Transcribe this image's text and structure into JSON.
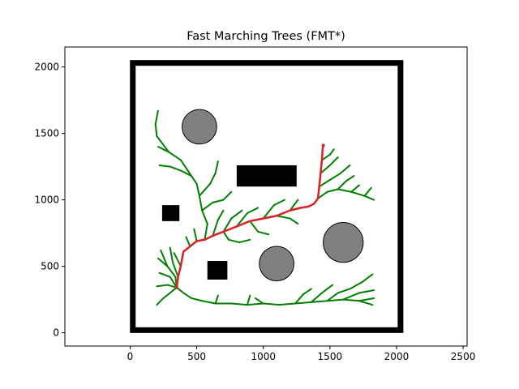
{
  "chart_data": {
    "type": "scatter",
    "title": "Fast Marching Trees (FMT*)",
    "xlabel": "",
    "ylabel": "",
    "xlim": [
      -490,
      2530
    ],
    "ylim": [
      -100,
      2150
    ],
    "x_ticks": [
      0,
      500,
      1000,
      1500,
      2000,
      2500
    ],
    "y_ticks": [
      0,
      500,
      1000,
      1500,
      2000
    ],
    "grid": false,
    "legend": "none",
    "colors": {
      "tree": "#008000",
      "path": "#d62728",
      "wall": "#000000",
      "circle_obstacle": "#808080",
      "rect_obstacle": "#000000"
    },
    "boundary": {
      "x0": 20,
      "y0": 20,
      "x1": 2030,
      "y1": 2030
    },
    "rect_obstacles": [
      {
        "x": 800,
        "y": 1100,
        "w": 450,
        "h": 160
      },
      {
        "x": 240,
        "y": 840,
        "w": 130,
        "h": 120
      },
      {
        "x": 580,
        "y": 400,
        "w": 150,
        "h": 140
      }
    ],
    "circle_obstacles": [
      {
        "cx": 520,
        "cy": 1550,
        "r": 130
      },
      {
        "cx": 1100,
        "cy": 520,
        "r": 130
      },
      {
        "cx": 1600,
        "cy": 680,
        "r": 150
      }
    ],
    "start": {
      "x": 350,
      "y": 340
    },
    "goal": {
      "x": 1450,
      "y": 1410
    },
    "path": [
      [
        350,
        340
      ],
      [
        360,
        420
      ],
      [
        380,
        500
      ],
      [
        400,
        610
      ],
      [
        450,
        650
      ],
      [
        500,
        690
      ],
      [
        560,
        700
      ],
      [
        620,
        730
      ],
      [
        700,
        760
      ],
      [
        800,
        800
      ],
      [
        900,
        840
      ],
      [
        1000,
        860
      ],
      [
        1100,
        880
      ],
      [
        1200,
        920
      ],
      [
        1280,
        940
      ],
      [
        1340,
        950
      ],
      [
        1380,
        970
      ],
      [
        1410,
        1010
      ],
      [
        1420,
        1100
      ],
      [
        1430,
        1200
      ],
      [
        1440,
        1300
      ],
      [
        1445,
        1380
      ],
      [
        1450,
        1410
      ]
    ],
    "tree_edges": [
      [
        [
          350,
          340
        ],
        [
          300,
          300
        ]
      ],
      [
        [
          300,
          300
        ],
        [
          250,
          260
        ]
      ],
      [
        [
          250,
          260
        ],
        [
          200,
          210
        ]
      ],
      [
        [
          350,
          340
        ],
        [
          280,
          360
        ]
      ],
      [
        [
          280,
          360
        ],
        [
          200,
          350
        ]
      ],
      [
        [
          350,
          340
        ],
        [
          300,
          420
        ]
      ],
      [
        [
          300,
          420
        ],
        [
          220,
          450
        ]
      ],
      [
        [
          350,
          340
        ],
        [
          340,
          420
        ]
      ],
      [
        [
          340,
          420
        ],
        [
          280,
          500
        ]
      ],
      [
        [
          280,
          500
        ],
        [
          210,
          560
        ]
      ],
      [
        [
          280,
          500
        ],
        [
          230,
          620
        ]
      ],
      [
        [
          360,
          420
        ],
        [
          320,
          530
        ]
      ],
      [
        [
          320,
          530
        ],
        [
          300,
          640
        ]
      ],
      [
        [
          380,
          500
        ],
        [
          330,
          600
        ]
      ],
      [
        [
          350,
          340
        ],
        [
          400,
          300
        ]
      ],
      [
        [
          400,
          300
        ],
        [
          460,
          260
        ]
      ],
      [
        [
          460,
          260
        ],
        [
          540,
          240
        ]
      ],
      [
        [
          540,
          240
        ],
        [
          640,
          220
        ]
      ],
      [
        [
          640,
          220
        ],
        [
          760,
          220
        ]
      ],
      [
        [
          760,
          220
        ],
        [
          880,
          210
        ]
      ],
      [
        [
          880,
          210
        ],
        [
          1000,
          220
        ]
      ],
      [
        [
          1000,
          220
        ],
        [
          1120,
          210
        ]
      ],
      [
        [
          1120,
          210
        ],
        [
          1240,
          220
        ]
      ],
      [
        [
          1240,
          220
        ],
        [
          1360,
          230
        ]
      ],
      [
        [
          1360,
          230
        ],
        [
          1480,
          240
        ]
      ],
      [
        [
          1480,
          240
        ],
        [
          1600,
          250
        ]
      ],
      [
        [
          1600,
          250
        ],
        [
          1720,
          240
        ]
      ],
      [
        [
          1720,
          240
        ],
        [
          1820,
          210
        ]
      ],
      [
        [
          1480,
          240
        ],
        [
          1560,
          300
        ]
      ],
      [
        [
          1560,
          300
        ],
        [
          1650,
          330
        ]
      ],
      [
        [
          1650,
          330
        ],
        [
          1740,
          380
        ]
      ],
      [
        [
          1740,
          380
        ],
        [
          1820,
          440
        ]
      ],
      [
        [
          1360,
          230
        ],
        [
          1440,
          300
        ]
      ],
      [
        [
          1440,
          300
        ],
        [
          1520,
          360
        ]
      ],
      [
        [
          1240,
          220
        ],
        [
          1300,
          290
        ]
      ],
      [
        [
          1300,
          290
        ],
        [
          1360,
          330
        ]
      ],
      [
        [
          1000,
          220
        ],
        [
          940,
          260
        ]
      ],
      [
        [
          880,
          210
        ],
        [
          900,
          280
        ]
      ],
      [
        [
          640,
          220
        ],
        [
          660,
          280
        ]
      ],
      [
        [
          1600,
          250
        ],
        [
          1720,
          300
        ]
      ],
      [
        [
          1720,
          300
        ],
        [
          1830,
          320
        ]
      ],
      [
        [
          1720,
          240
        ],
        [
          1830,
          260
        ]
      ],
      [
        [
          450,
          650
        ],
        [
          420,
          720
        ]
      ],
      [
        [
          500,
          690
        ],
        [
          480,
          780
        ]
      ],
      [
        [
          560,
          700
        ],
        [
          580,
          820
        ]
      ],
      [
        [
          580,
          820
        ],
        [
          540,
          920
        ]
      ],
      [
        [
          540,
          920
        ],
        [
          520,
          1030
        ]
      ],
      [
        [
          520,
          1030
        ],
        [
          500,
          1120
        ]
      ],
      [
        [
          500,
          1120
        ],
        [
          460,
          1180
        ]
      ],
      [
        [
          460,
          1180
        ],
        [
          380,
          1220
        ]
      ],
      [
        [
          380,
          1220
        ],
        [
          300,
          1250
        ]
      ],
      [
        [
          300,
          1250
        ],
        [
          220,
          1260
        ]
      ],
      [
        [
          460,
          1180
        ],
        [
          380,
          1300
        ]
      ],
      [
        [
          380,
          1300
        ],
        [
          290,
          1360
        ]
      ],
      [
        [
          290,
          1360
        ],
        [
          210,
          1400
        ]
      ],
      [
        [
          290,
          1360
        ],
        [
          200,
          1480
        ]
      ],
      [
        [
          200,
          1480
        ],
        [
          190,
          1570
        ]
      ],
      [
        [
          190,
          1570
        ],
        [
          210,
          1670
        ]
      ],
      [
        [
          520,
          1030
        ],
        [
          600,
          1120
        ]
      ],
      [
        [
          600,
          1120
        ],
        [
          640,
          1200
        ]
      ],
      [
        [
          640,
          1200
        ],
        [
          660,
          1290
        ]
      ],
      [
        [
          540,
          920
        ],
        [
          620,
          980
        ]
      ],
      [
        [
          620,
          980
        ],
        [
          700,
          1000
        ]
      ],
      [
        [
          700,
          1000
        ],
        [
          760,
          1060
        ]
      ],
      [
        [
          620,
          730
        ],
        [
          660,
          850
        ]
      ],
      [
        [
          660,
          850
        ],
        [
          700,
          920
        ]
      ],
      [
        [
          700,
          760
        ],
        [
          760,
          860
        ]
      ],
      [
        [
          760,
          860
        ],
        [
          840,
          920
        ]
      ],
      [
        [
          800,
          800
        ],
        [
          880,
          900
        ]
      ],
      [
        [
          880,
          900
        ],
        [
          960,
          940
        ]
      ],
      [
        [
          900,
          840
        ],
        [
          960,
          760
        ]
      ],
      [
        [
          960,
          760
        ],
        [
          1040,
          740
        ]
      ],
      [
        [
          1000,
          860
        ],
        [
          1080,
          960
        ]
      ],
      [
        [
          1080,
          960
        ],
        [
          1160,
          1000
        ]
      ],
      [
        [
          1100,
          880
        ],
        [
          1200,
          860
        ]
      ],
      [
        [
          1200,
          860
        ],
        [
          1260,
          820
        ]
      ],
      [
        [
          1200,
          920
        ],
        [
          1260,
          1000
        ]
      ],
      [
        [
          700,
          760
        ],
        [
          740,
          700
        ]
      ],
      [
        [
          740,
          700
        ],
        [
          820,
          680
        ]
      ],
      [
        [
          820,
          680
        ],
        [
          900,
          700
        ]
      ],
      [
        [
          1410,
          1010
        ],
        [
          1480,
          1060
        ]
      ],
      [
        [
          1480,
          1060
        ],
        [
          1560,
          1080
        ]
      ],
      [
        [
          1560,
          1080
        ],
        [
          1660,
          1060
        ]
      ],
      [
        [
          1660,
          1060
        ],
        [
          1760,
          1030
        ]
      ],
      [
        [
          1760,
          1030
        ],
        [
          1830,
          1000
        ]
      ],
      [
        [
          1420,
          1100
        ],
        [
          1500,
          1150
        ]
      ],
      [
        [
          1500,
          1150
        ],
        [
          1580,
          1200
        ]
      ],
      [
        [
          1580,
          1200
        ],
        [
          1650,
          1260
        ]
      ],
      [
        [
          1430,
          1200
        ],
        [
          1500,
          1260
        ]
      ],
      [
        [
          1500,
          1260
        ],
        [
          1560,
          1320
        ]
      ],
      [
        [
          1440,
          1300
        ],
        [
          1500,
          1340
        ]
      ],
      [
        [
          1500,
          1340
        ],
        [
          1530,
          1380
        ]
      ],
      [
        [
          1560,
          1080
        ],
        [
          1620,
          1140
        ]
      ],
      [
        [
          1620,
          1140
        ],
        [
          1680,
          1180
        ]
      ],
      [
        [
          1660,
          1060
        ],
        [
          1720,
          1110
        ]
      ],
      [
        [
          1760,
          1030
        ],
        [
          1810,
          1090
        ]
      ]
    ]
  }
}
